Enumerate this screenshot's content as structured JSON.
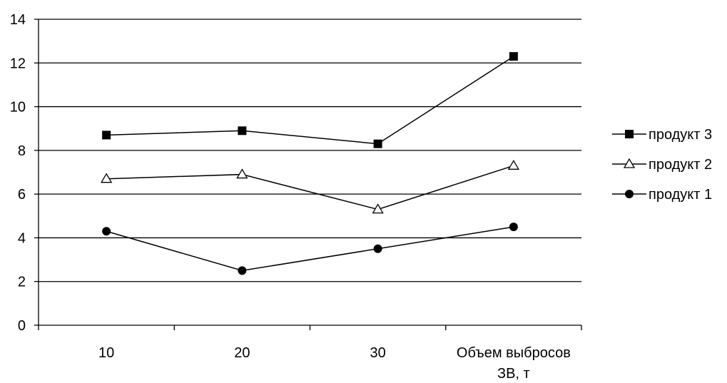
{
  "chart_data": {
    "type": "line",
    "categories": [
      "10",
      "20",
      "30",
      "Объем выбросов ЗВ, т"
    ],
    "series": [
      {
        "name": "продукт 3",
        "values": [
          8.7,
          8.9,
          8.3,
          12.3
        ],
        "marker": "square"
      },
      {
        "name": "продукт 2",
        "values": [
          6.7,
          6.9,
          5.3,
          7.3
        ],
        "marker": "triangle-open"
      },
      {
        "name": "продукт 1",
        "values": [
          4.3,
          2.5,
          3.5,
          4.5
        ],
        "marker": "circle"
      }
    ],
    "ylim": [
      0,
      14
    ],
    "yticks": [
      0,
      2,
      4,
      6,
      8,
      10,
      12,
      14
    ],
    "ytick_labels": [
      "0",
      "2",
      "4",
      "6",
      "8",
      "10",
      "12",
      "14"
    ],
    "grid": true,
    "legend_position": "right",
    "colors": {
      "line": "#000000",
      "grid": "#000000",
      "background": "#ffffff"
    }
  }
}
